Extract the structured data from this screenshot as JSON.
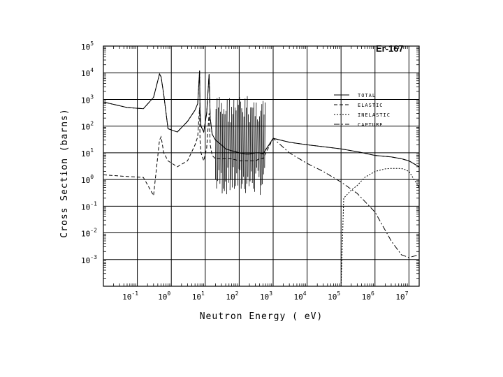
{
  "chart_data": {
    "type": "line",
    "title": "Er-167",
    "xlabel": "Neutron Energy ( eV)",
    "ylabel": "Cross Section (barns)",
    "xscale": "log",
    "yscale": "log",
    "xlim": [
      0.01,
      20000000
    ],
    "ylim": [
      0.0001,
      100000
    ],
    "grid": true,
    "legend_position": "top-right",
    "x_ticks": [
      {
        "value": 0.1,
        "base": "10",
        "exp": "-1"
      },
      {
        "value": 1,
        "base": "10",
        "exp": "0"
      },
      {
        "value": 10,
        "base": "10",
        "exp": "1"
      },
      {
        "value": 100,
        "base": "10",
        "exp": "2"
      },
      {
        "value": 1000,
        "base": "10",
        "exp": "3"
      },
      {
        "value": 10000,
        "base": "10",
        "exp": "4"
      },
      {
        "value": 100000,
        "base": "10",
        "exp": "5"
      },
      {
        "value": 1000000,
        "base": "10",
        "exp": "6"
      },
      {
        "value": 10000000,
        "base": "10",
        "exp": "7"
      }
    ],
    "y_ticks": [
      {
        "value": 100000,
        "base": "10",
        "exp": "5"
      },
      {
        "value": 10000,
        "base": "10",
        "exp": "4"
      },
      {
        "value": 1000,
        "base": "10",
        "exp": "3"
      },
      {
        "value": 100,
        "base": "10",
        "exp": "2"
      },
      {
        "value": 10,
        "base": "10",
        "exp": "1"
      },
      {
        "value": 1,
        "base": "10",
        "exp": "0"
      },
      {
        "value": 0.1,
        "base": "10",
        "exp": "-1"
      },
      {
        "value": 0.01,
        "base": "10",
        "exp": "-2"
      },
      {
        "value": 0.001,
        "base": "10",
        "exp": "-3"
      }
    ],
    "series": [
      {
        "name": "TOTAL",
        "dash": "",
        "x": [
          0.01,
          0.05,
          0.15,
          0.3,
          0.45,
          0.5,
          0.6,
          0.8,
          1.5,
          3,
          5,
          6,
          6.8,
          7,
          7.5,
          9,
          11,
          13,
          14,
          16,
          20,
          30,
          40,
          60,
          100,
          150,
          200,
          300,
          400,
          500,
          1000,
          3000,
          10000,
          30000,
          100000,
          300000,
          1000000,
          3000000,
          6000000,
          10000000,
          20000000
        ],
        "y": [
          800,
          500,
          450,
          1200,
          9000,
          7000,
          1500,
          80,
          60,
          150,
          400,
          700,
          12000,
          400,
          100,
          60,
          300,
          9000,
          200,
          50,
          30,
          20,
          14,
          12,
          10,
          9,
          9,
          10,
          10,
          9,
          35,
          25,
          20,
          17,
          14,
          11,
          8,
          7,
          6,
          5,
          3
        ]
      },
      {
        "name": "ELASTIC",
        "dash": "5,3",
        "x": [
          0.01,
          0.05,
          0.15,
          0.3,
          0.45,
          0.5,
          0.6,
          0.8,
          1.5,
          3,
          5,
          6,
          6.8,
          7,
          7.5,
          9,
          11,
          13,
          14,
          16,
          20,
          30,
          40,
          60,
          100,
          150,
          200,
          300,
          400,
          500,
          1000,
          3000,
          10000,
          30000,
          100000,
          300000,
          1000000,
          3000000,
          6000000,
          10000000,
          20000000
        ],
        "y": [
          1.5,
          1.3,
          1.2,
          0.25,
          30,
          40,
          10,
          5,
          3,
          5,
          20,
          40,
          500,
          30,
          10,
          5,
          15,
          300,
          20,
          8,
          6,
          6,
          6,
          6,
          5,
          5,
          5,
          5,
          6,
          6,
          35,
          25,
          20,
          17,
          14,
          11,
          8,
          7,
          6,
          5,
          3
        ]
      },
      {
        "name": "INELASTIC",
        "dash": "2,2",
        "x": [
          100000,
          120000,
          200000,
          300000,
          500000,
          1000000,
          2000000,
          3000000,
          5000000,
          7000000,
          10000000,
          20000000
        ],
        "y": [
          0.0001,
          0.2,
          0.4,
          0.6,
          1.2,
          2,
          2.5,
          2.6,
          2.6,
          2.5,
          2,
          0.5
        ]
      },
      {
        "name": "CAPTURE",
        "dash": "8,3,2,3",
        "x": [
          0.01,
          0.05,
          0.15,
          0.3,
          0.45,
          0.5,
          0.6,
          0.8,
          1.5,
          3,
          5,
          6,
          6.8,
          7,
          7.5,
          9,
          11,
          13,
          14,
          16,
          20,
          30,
          40,
          60,
          100,
          150,
          200,
          300,
          400,
          500,
          1000,
          3000,
          10000,
          30000,
          100000,
          300000,
          1000000,
          3000000,
          6000000,
          10000000,
          20000000
        ],
        "y": [
          800,
          500,
          450,
          1200,
          9000,
          7000,
          1500,
          80,
          60,
          150,
          400,
          700,
          12000,
          400,
          100,
          60,
          300,
          9000,
          200,
          50,
          30,
          20,
          14,
          12,
          10,
          9,
          9,
          10,
          10,
          9,
          35,
          10,
          4,
          2,
          0.8,
          0.3,
          0.06,
          0.005,
          0.0015,
          0.0012,
          0.0015
        ]
      }
    ],
    "resonance_region": {
      "xmin": 20,
      "xmax": 600,
      "ymin": 0.25,
      "ymax": 1500
    }
  }
}
